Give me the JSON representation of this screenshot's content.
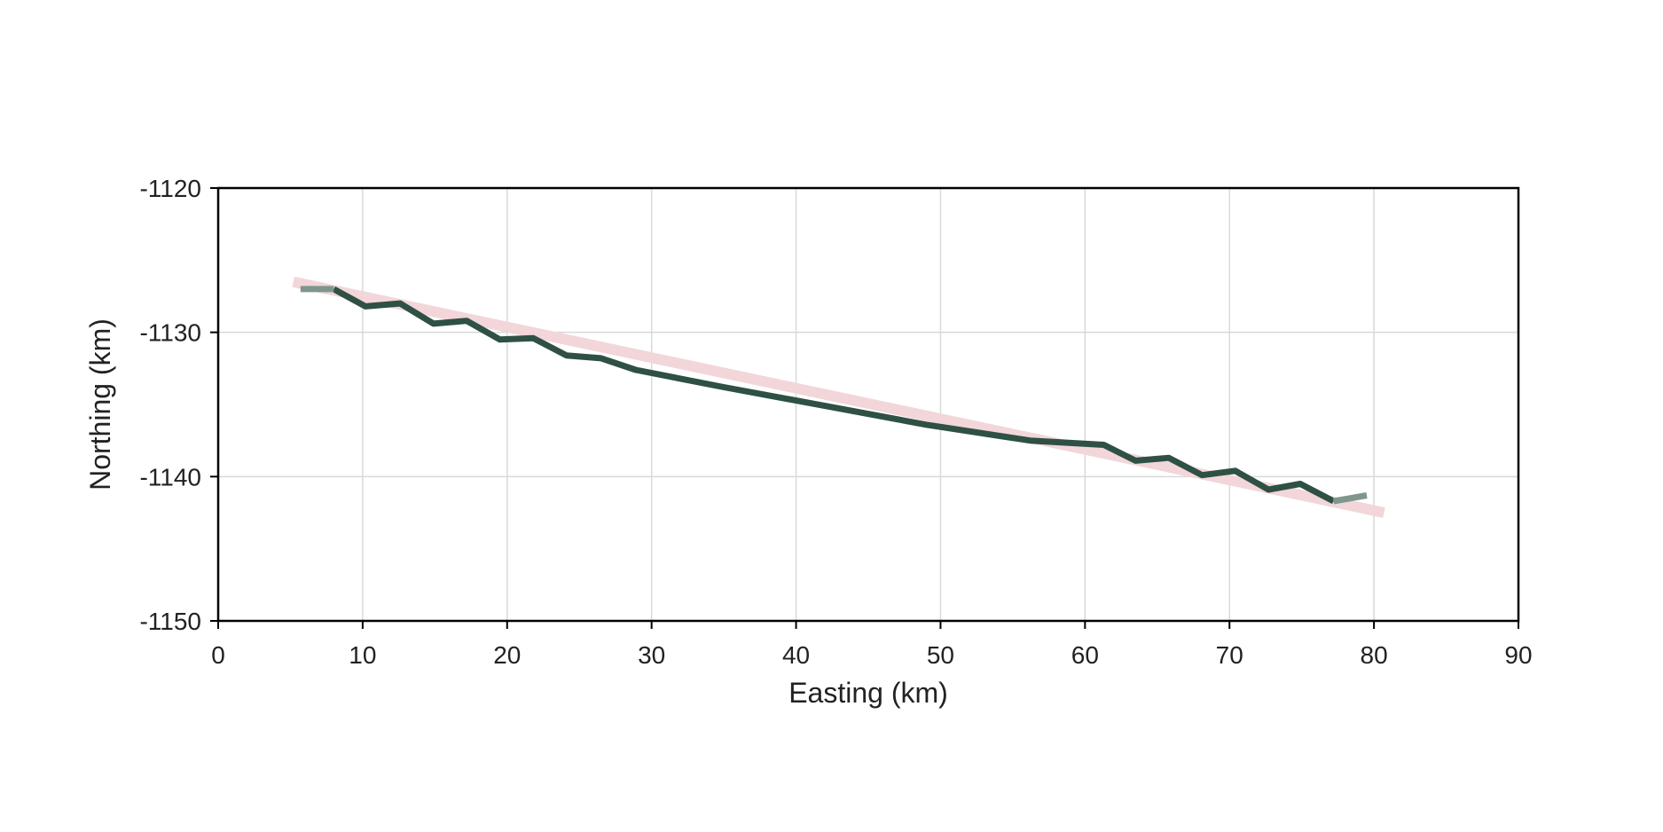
{
  "chart_data": {
    "type": "line",
    "title": "",
    "xlabel": "Easting (km)",
    "ylabel": "Northing (km)",
    "xlim": [
      0,
      90
    ],
    "ylim": [
      -1150,
      -1120
    ],
    "xticks": [
      0,
      10,
      20,
      30,
      40,
      50,
      60,
      70,
      80,
      90
    ],
    "yticks": [
      -1120,
      -1130,
      -1140,
      -1150
    ],
    "grid": true,
    "legend": "none",
    "colors": {
      "main_line": "#2f5045",
      "end_segments": "#7f968d",
      "trend_band": "#f2d6d9",
      "grid": "#d9d9d9",
      "axes": "#000000"
    },
    "series": [
      {
        "role": "trend",
        "x": [
          5.2,
          80.7
        ],
        "y": [
          -1126.5,
          -1142.5
        ]
      },
      {
        "role": "track",
        "x": [
          8.0,
          10.2,
          12.6,
          14.9,
          17.2,
          19.5,
          21.8,
          24.1,
          26.5,
          28.9,
          35.0,
          42.0,
          49.0,
          56.2,
          61.3,
          63.5,
          65.8,
          68.1,
          70.4,
          72.7,
          74.9,
          77.2
        ],
        "y": [
          -1127.0,
          -1128.2,
          -1128.0,
          -1129.4,
          -1129.2,
          -1130.5,
          -1130.4,
          -1131.6,
          -1131.8,
          -1132.6,
          -1133.8,
          -1135.1,
          -1136.4,
          -1137.5,
          -1137.8,
          -1138.9,
          -1138.7,
          -1139.9,
          -1139.6,
          -1140.9,
          -1140.5,
          -1141.7
        ]
      },
      {
        "role": "track-start",
        "x": [
          5.7,
          8.0
        ],
        "y": [
          -1127.0,
          -1127.0
        ]
      },
      {
        "role": "track-end",
        "x": [
          77.2,
          79.5
        ],
        "y": [
          -1141.7,
          -1141.3
        ]
      }
    ]
  }
}
